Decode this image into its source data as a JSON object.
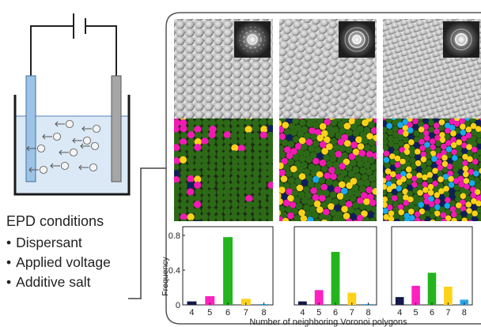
{
  "conditions": {
    "title": "EPD conditions",
    "bullet": "•",
    "items": [
      "Dispersant",
      "Applied voltage",
      "Additive salt"
    ]
  },
  "colors": {
    "electrode_left": "#9dc3e6",
    "electrode_right": "#a6a6a6",
    "liquid": "#dbe9f6",
    "green": "#2d6a17",
    "magenta": "#f21ab4",
    "yellow": "#ffd21a",
    "cyan": "#18a9ee",
    "navy": "#0f1f5c",
    "bar_navy": "#14184a",
    "bar_magenta": "#ff20c0",
    "bar_green": "#24b51e",
    "bar_yellow": "#ffd21a",
    "bar_cyan": "#2aa4e6"
  },
  "panel_icons": [
    "fft-pattern-icon",
    "fft-pattern-icon",
    "fft-pattern-icon"
  ],
  "chart_data": [
    {
      "type": "bar",
      "categories": [
        "4",
        "5",
        "6",
        "7",
        "8"
      ],
      "values": [
        0.04,
        0.1,
        0.78,
        0.07,
        0.01
      ],
      "ylabel": "Frequency",
      "yticks": [
        0,
        0.4,
        0.8
      ],
      "ylim": [
        0,
        0.9
      ]
    },
    {
      "type": "bar",
      "categories": [
        "4",
        "5",
        "6",
        "7",
        "8"
      ],
      "values": [
        0.04,
        0.17,
        0.61,
        0.14,
        0.01
      ],
      "yticks": [],
      "ylim": [
        0,
        0.9
      ]
    },
    {
      "type": "bar",
      "categories": [
        "4",
        "5",
        "6",
        "7",
        "8"
      ],
      "values": [
        0.09,
        0.22,
        0.37,
        0.21,
        0.06
      ],
      "yticks": [],
      "ylim": [
        0,
        0.9
      ]
    }
  ],
  "xlabel": "Number of neighboring Voronoi polygons"
}
